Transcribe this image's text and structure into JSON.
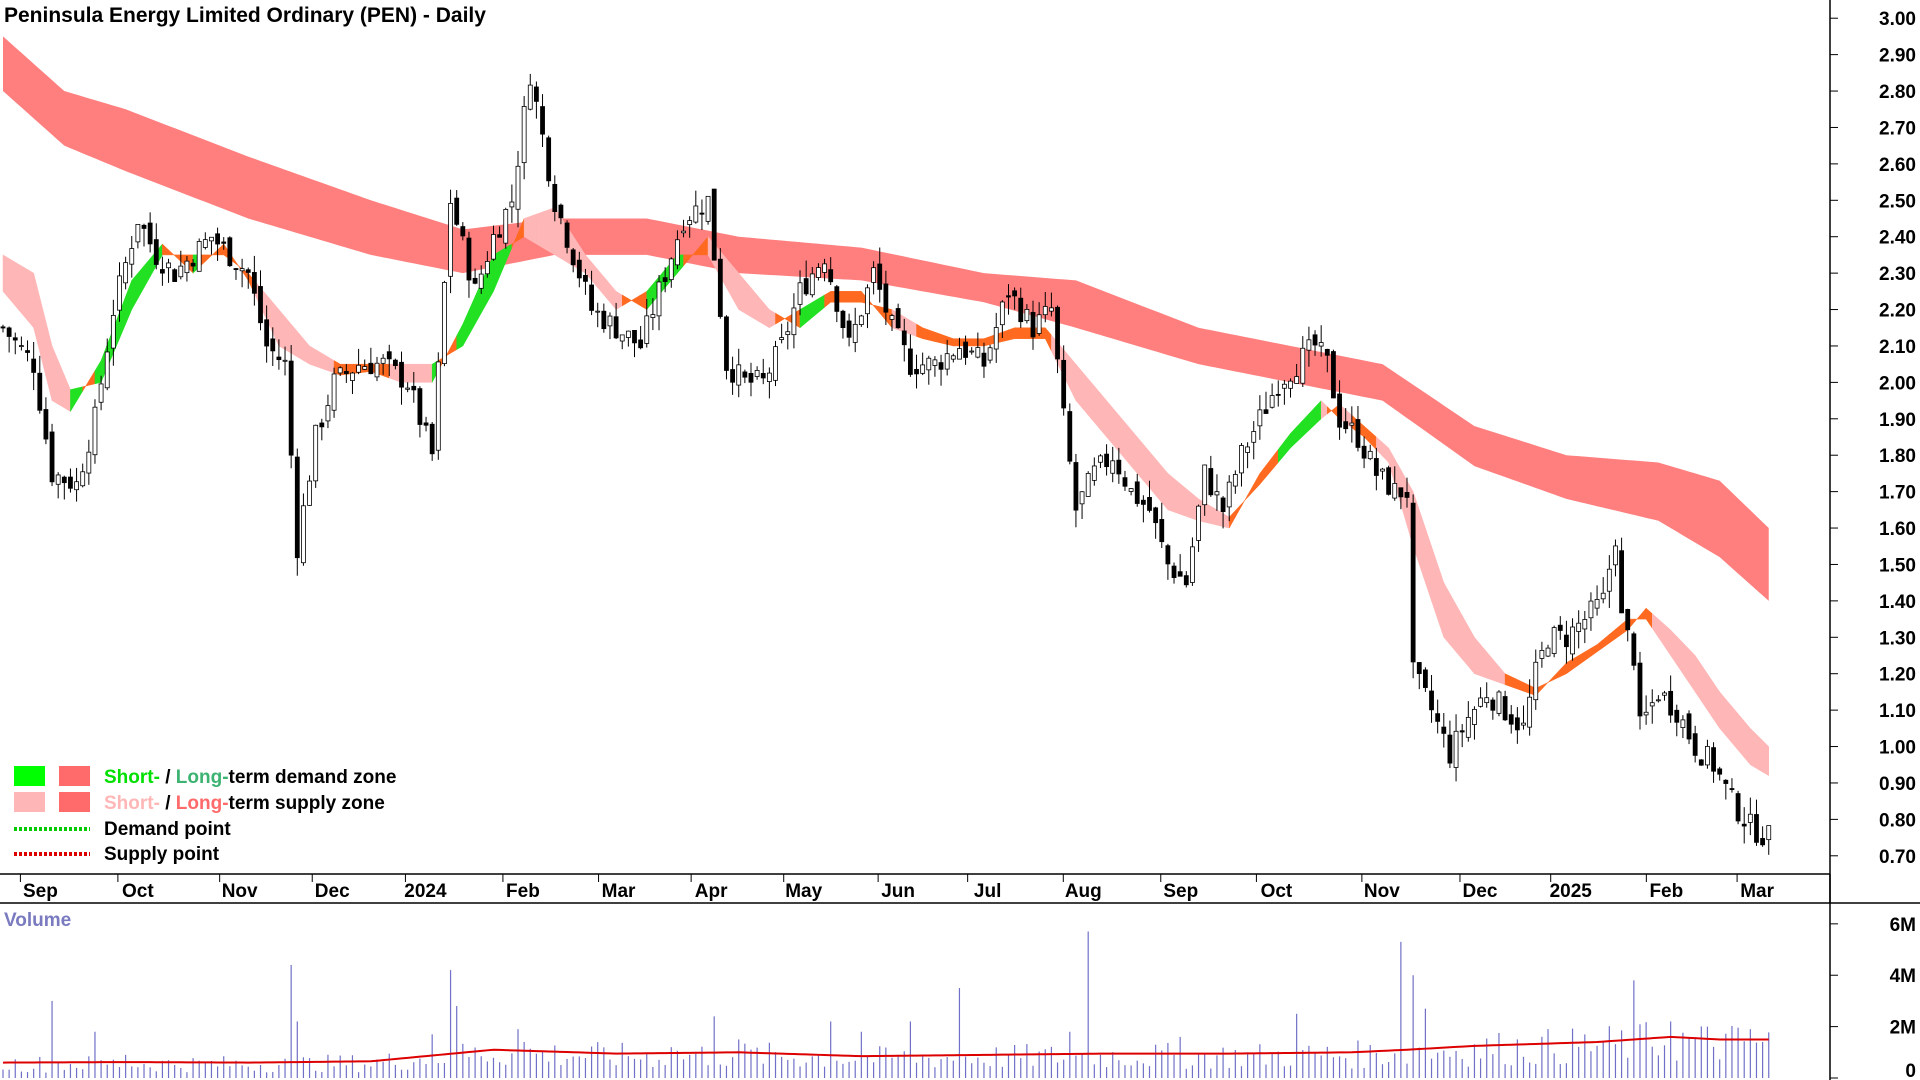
{
  "chart_data": {
    "type": "candlestick-with-volume",
    "title": "Peninsula Energy Limited Ordinary (PEN) - Daily",
    "price_axis": {
      "ylim": [
        0.65,
        3.05
      ],
      "ticks": [
        3.0,
        2.9,
        2.8,
        2.7,
        2.6,
        2.5,
        2.4,
        2.3,
        2.2,
        2.1,
        2.0,
        1.9,
        1.8,
        1.7,
        1.6,
        1.5,
        1.4,
        1.3,
        1.2,
        1.1,
        1.0,
        0.9,
        0.8,
        0.7
      ],
      "tick_labels": [
        "3.00",
        "2.90",
        "2.80",
        "2.70",
        "2.60",
        "2.50",
        "2.40",
        "2.30",
        "2.20",
        "2.10",
        "2.00",
        "1.90",
        "1.80",
        "1.70",
        "1.60",
        "1.50",
        "1.40",
        "1.30",
        "1.20",
        "1.10",
        "1.00",
        "0.90",
        "0.80",
        "0.70"
      ]
    },
    "x_axis": {
      "tick_labels": [
        "Sep",
        "Oct",
        "Nov",
        "Dec",
        "2024",
        "Feb",
        "Mar",
        "Apr",
        "May",
        "Jun",
        "Jul",
        "Aug",
        "Sep",
        "Oct",
        "Nov",
        "Dec",
        "2025",
        "Feb",
        "Mar"
      ],
      "tick_positions": [
        6.1,
        22.0,
        38.6,
        53.7,
        68.9,
        84.8,
        100.4,
        115.5,
        130.6,
        146.0,
        160.6,
        176.2,
        192.1,
        207.7,
        224.9,
        240.9,
        255.7,
        271.3,
        286.1
      ],
      "n_bars": 290
    },
    "close_series": {
      "anchors": [
        [
          0,
          2.15
        ],
        [
          5,
          2.05
        ],
        [
          8,
          1.75
        ],
        [
          12,
          1.72
        ],
        [
          15,
          1.9
        ],
        [
          18,
          2.2
        ],
        [
          22,
          2.45
        ],
        [
          25,
          2.35
        ],
        [
          28,
          2.3
        ],
        [
          31,
          2.35
        ],
        [
          34,
          2.4
        ],
        [
          37,
          2.35
        ],
        [
          40,
          2.3
        ],
        [
          43,
          2.1
        ],
        [
          46,
          2.05
        ],
        [
          48,
          1.55
        ],
        [
          51,
          1.85
        ],
        [
          54,
          2.0
        ],
        [
          58,
          2.05
        ],
        [
          62,
          2.05
        ],
        [
          66,
          2.0
        ],
        [
          70,
          1.8
        ],
        [
          73,
          2.5
        ],
        [
          77,
          2.25
        ],
        [
          80,
          2.4
        ],
        [
          83,
          2.5
        ],
        [
          86,
          2.85
        ],
        [
          90,
          2.5
        ],
        [
          93,
          2.35
        ],
        [
          96,
          2.2
        ],
        [
          100,
          2.15
        ],
        [
          104,
          2.1
        ],
        [
          108,
          2.3
        ],
        [
          111,
          2.45
        ],
        [
          115,
          2.5
        ],
        [
          118,
          2.05
        ],
        [
          121,
          2.0
        ],
        [
          124,
          2.0
        ],
        [
          127,
          2.1
        ],
        [
          130,
          2.25
        ],
        [
          134,
          2.35
        ],
        [
          138,
          2.1
        ],
        [
          142,
          2.3
        ],
        [
          145,
          2.15
        ],
        [
          148,
          2.05
        ],
        [
          152,
          2.05
        ],
        [
          156,
          2.1
        ],
        [
          160,
          2.05
        ],
        [
          164,
          2.25
        ],
        [
          168,
          2.15
        ],
        [
          171,
          2.2
        ],
        [
          173,
          1.9
        ],
        [
          175,
          1.65
        ],
        [
          178,
          1.75
        ],
        [
          181,
          1.8
        ],
        [
          184,
          1.7
        ],
        [
          187,
          1.65
        ],
        [
          190,
          1.5
        ],
        [
          193,
          1.45
        ],
        [
          196,
          1.75
        ],
        [
          199,
          1.65
        ],
        [
          202,
          1.8
        ],
        [
          205,
          1.9
        ],
        [
          208,
          2.0
        ],
        [
          211,
          2.05
        ],
        [
          214,
          2.1
        ],
        [
          216,
          2.05
        ],
        [
          218,
          1.9
        ],
        [
          221,
          1.85
        ],
        [
          224,
          1.75
        ],
        [
          227,
          1.7
        ],
        [
          229,
          1.7
        ],
        [
          230,
          1.2
        ],
        [
          233,
          1.1
        ],
        [
          236,
          0.98
        ],
        [
          239,
          1.08
        ],
        [
          242,
          1.15
        ],
        [
          245,
          1.1
        ],
        [
          248,
          1.05
        ],
        [
          250,
          1.2
        ],
        [
          252,
          1.3
        ],
        [
          255,
          1.3
        ],
        [
          258,
          1.35
        ],
        [
          261,
          1.4
        ],
        [
          263,
          1.58
        ],
        [
          264,
          1.35
        ],
        [
          266,
          1.25
        ],
        [
          267,
          1.05
        ],
        [
          270,
          1.15
        ],
        [
          273,
          1.1
        ],
        [
          276,
          1.0
        ],
        [
          279,
          0.95
        ],
        [
          282,
          0.85
        ],
        [
          285,
          0.78
        ],
        [
          288,
          0.75
        ]
      ],
      "note_bar_spread": 0.05
    },
    "long_term_supply_band": [
      [
        0,
        2.95,
        2.8
      ],
      [
        10,
        2.8,
        2.65
      ],
      [
        20,
        2.75,
        2.58
      ],
      [
        40,
        2.62,
        2.45
      ],
      [
        60,
        2.5,
        2.35
      ],
      [
        75,
        2.42,
        2.3
      ],
      [
        90,
        2.45,
        2.35
      ],
      [
        105,
        2.45,
        2.35
      ],
      [
        120,
        2.4,
        2.3
      ],
      [
        140,
        2.37,
        2.28
      ],
      [
        160,
        2.3,
        2.22
      ],
      [
        175,
        2.28,
        2.15
      ],
      [
        195,
        2.15,
        2.05
      ],
      [
        210,
        2.1,
        2.0
      ],
      [
        225,
        2.05,
        1.95
      ],
      [
        240,
        1.88,
        1.77
      ],
      [
        255,
        1.8,
        1.68
      ],
      [
        270,
        1.78,
        1.62
      ],
      [
        280,
        1.73,
        1.52
      ],
      [
        288,
        1.6,
        1.4
      ]
    ],
    "short_term_band": [
      [
        0,
        2.35,
        2.25
      ],
      [
        5,
        2.3,
        2.15
      ],
      [
        8,
        2.1,
        1.95
      ],
      [
        11,
        1.98,
        1.92
      ],
      [
        16,
        2.0,
        2.06
      ],
      [
        21,
        2.2,
        2.28
      ],
      [
        26,
        2.35,
        2.38
      ],
      [
        31,
        2.35,
        2.3
      ],
      [
        36,
        2.35,
        2.38
      ],
      [
        40,
        2.3,
        2.28
      ],
      [
        45,
        2.2,
        2.1
      ],
      [
        50,
        2.1,
        2.05
      ],
      [
        55,
        2.05,
        2.02
      ],
      [
        60,
        2.05,
        2.03
      ],
      [
        65,
        2.05,
        2.0
      ],
      [
        70,
        2.05,
        2.0
      ],
      [
        75,
        2.1,
        2.16
      ],
      [
        80,
        2.25,
        2.35
      ],
      [
        85,
        2.45,
        2.4
      ],
      [
        90,
        2.48,
        2.35
      ],
      [
        95,
        2.35,
        2.3
      ],
      [
        100,
        2.25,
        2.2
      ],
      [
        105,
        2.2,
        2.25
      ],
      [
        110,
        2.3,
        2.35
      ],
      [
        115,
        2.4,
        2.35
      ],
      [
        120,
        2.3,
        2.2
      ],
      [
        125,
        2.2,
        2.15
      ],
      [
        130,
        2.15,
        2.2
      ],
      [
        135,
        2.22,
        2.25
      ],
      [
        140,
        2.22,
        2.25
      ],
      [
        145,
        2.2,
        2.15
      ],
      [
        150,
        2.15,
        2.12
      ],
      [
        155,
        2.12,
        2.1
      ],
      [
        160,
        2.12,
        2.1
      ],
      [
        165,
        2.15,
        2.12
      ],
      [
        170,
        2.15,
        2.12
      ],
      [
        175,
        2.05,
        1.95
      ],
      [
        180,
        1.95,
        1.85
      ],
      [
        185,
        1.85,
        1.75
      ],
      [
        190,
        1.75,
        1.65
      ],
      [
        195,
        1.68,
        1.62
      ],
      [
        200,
        1.63,
        1.6
      ],
      [
        205,
        1.72,
        1.75
      ],
      [
        210,
        1.82,
        1.86
      ],
      [
        215,
        1.9,
        1.95
      ],
      [
        218,
        1.94,
        1.9
      ],
      [
        222,
        1.88,
        1.85
      ],
      [
        226,
        1.82,
        1.78
      ],
      [
        230,
        1.7,
        1.55
      ],
      [
        235,
        1.45,
        1.3
      ],
      [
        240,
        1.3,
        1.2
      ],
      [
        245,
        1.2,
        1.17
      ],
      [
        250,
        1.16,
        1.14
      ],
      [
        255,
        1.2,
        1.23
      ],
      [
        260,
        1.26,
        1.28
      ],
      [
        265,
        1.32,
        1.35
      ],
      [
        268,
        1.38,
        1.35
      ],
      [
        272,
        1.32,
        1.25
      ],
      [
        276,
        1.25,
        1.15
      ],
      [
        280,
        1.15,
        1.05
      ],
      [
        285,
        1.05,
        0.95
      ],
      [
        288,
        1.0,
        0.92
      ]
    ],
    "volume_axis": {
      "ylim": [
        0,
        6.5
      ],
      "ticks": [
        6,
        4,
        2,
        0
      ],
      "tick_labels": [
        "6M",
        "4M",
        "2M",
        "0"
      ],
      "label": "Volume"
    },
    "volume_spikes": [
      [
        8,
        3.0
      ],
      [
        15,
        1.8
      ],
      [
        20,
        0.9
      ],
      [
        47,
        4.4
      ],
      [
        48,
        2.2
      ],
      [
        70,
        1.7
      ],
      [
        73,
        4.2
      ],
      [
        74,
        2.8
      ],
      [
        84,
        1.9
      ],
      [
        85,
        1.4
      ],
      [
        109,
        1.2
      ],
      [
        116,
        2.4
      ],
      [
        120,
        1.5
      ],
      [
        135,
        2.2
      ],
      [
        140,
        1.8
      ],
      [
        148,
        2.2
      ],
      [
        156,
        3.5
      ],
      [
        174,
        1.8
      ],
      [
        177,
        5.7
      ],
      [
        192,
        1.6
      ],
      [
        211,
        2.5
      ],
      [
        228,
        5.3
      ],
      [
        230,
        4.0
      ],
      [
        232,
        2.7
      ],
      [
        266,
        3.8
      ],
      [
        272,
        2.2
      ],
      [
        285,
        1.9
      ]
    ],
    "volume_average": [
      [
        0,
        0.6
      ],
      [
        20,
        0.62
      ],
      [
        40,
        0.6
      ],
      [
        60,
        0.65
      ],
      [
        80,
        1.1
      ],
      [
        100,
        0.95
      ],
      [
        120,
        1.0
      ],
      [
        140,
        0.85
      ],
      [
        160,
        0.9
      ],
      [
        180,
        0.95
      ],
      [
        200,
        0.95
      ],
      [
        220,
        1.0
      ],
      [
        229,
        1.1
      ],
      [
        240,
        1.25
      ],
      [
        260,
        1.4
      ],
      [
        272,
        1.6
      ],
      [
        280,
        1.5
      ],
      [
        288,
        1.5
      ]
    ]
  },
  "legend": {
    "items": [
      {
        "prefix": "Short-",
        "sep": " / ",
        "long": "Long-",
        "suffix": "term demand zone",
        "swatch1": "#00ff00",
        "swatch2": "#3cb371",
        "prefix_color": "#00e000",
        "long_color": "#3cb371"
      },
      {
        "prefix": "Short-",
        "sep": " / ",
        "long": "Long-",
        "suffix": "term supply zone",
        "swatch1": "#ffb6b6",
        "swatch2": "#ff6b6b",
        "prefix_color": "#ffb6b6",
        "long_color": "#ff6b6b"
      }
    ],
    "points": [
      {
        "label": "Demand point",
        "color": "#00cc00"
      },
      {
        "label": "Supply point",
        "color": "#dd0000"
      }
    ]
  },
  "colors": {
    "long_supply": "#ff7f7f",
    "short_supply": "#ffb6b6",
    "short_demand": "#22e022",
    "transition": "#ff6a20",
    "volume_bar": "#7070c8",
    "volume_avg": "#dd0000"
  }
}
